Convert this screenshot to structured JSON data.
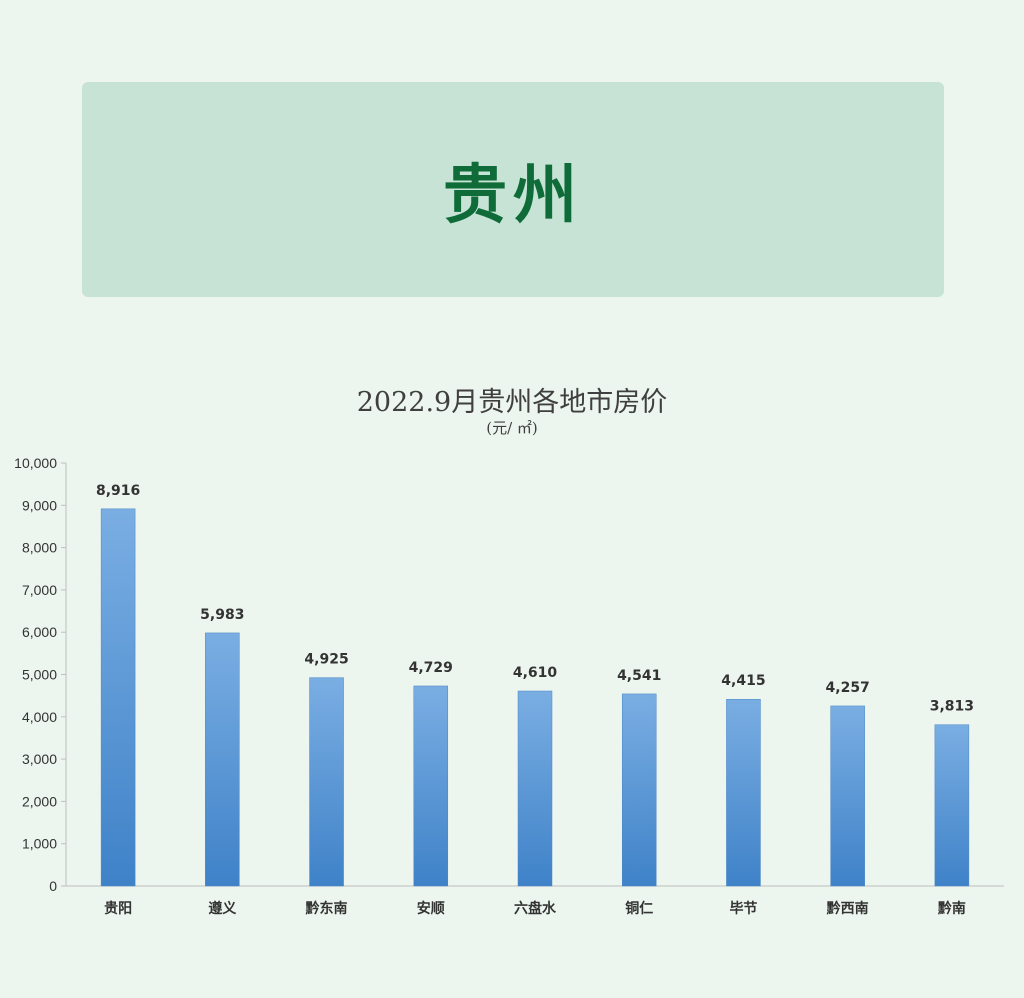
{
  "banner": {
    "title": "贵州"
  },
  "chart_data": {
    "type": "bar",
    "title": "2022.9月贵州各地市房价",
    "subtitle": "(元/ ㎡)",
    "categories": [
      "贵阳",
      "遵义",
      "黔东南",
      "安顺",
      "六盘水",
      "铜仁",
      "毕节",
      "黔西南",
      "黔南"
    ],
    "values": [
      8916,
      5983,
      4925,
      4729,
      4610,
      4541,
      4415,
      4257,
      3813
    ],
    "value_labels": [
      "8,916",
      "5,983",
      "4,925",
      "4,729",
      "4,610",
      "4,541",
      "4,415",
      "4,257",
      "3,813"
    ],
    "ylim": [
      0,
      10000
    ],
    "y_ticks": [
      0,
      1000,
      2000,
      3000,
      4000,
      5000,
      6000,
      7000,
      8000,
      9000,
      10000
    ],
    "y_tick_labels": [
      "0",
      "1,000",
      "2,000",
      "3,000",
      "4,000",
      "5,000",
      "6,000",
      "7,000",
      "8,000",
      "9,000",
      "10,000"
    ],
    "grid": false,
    "bar_color": "#5b9bd5"
  }
}
